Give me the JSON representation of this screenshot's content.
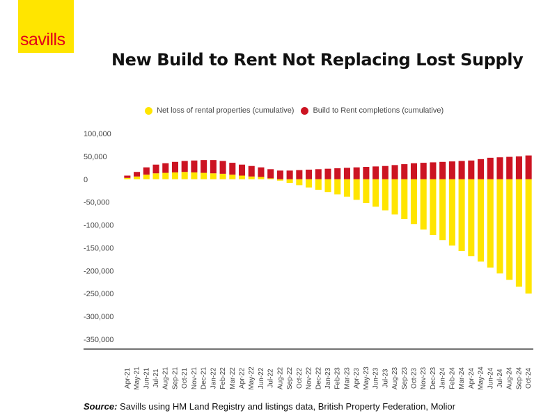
{
  "logo": {
    "text": "savills",
    "background_color": "#FFE500",
    "text_color": "#E2001A"
  },
  "source": {
    "label": "Source:",
    "text": "Savills using HM Land Registry and listings data, British Property Federation, Molior"
  },
  "colors": {
    "net_loss": "#FFE500",
    "btr": "#CC1422",
    "axis": "#444444",
    "grid": "#e6e6e6"
  },
  "chart_data": {
    "type": "bar",
    "stacking": "diverging",
    "title": "New Build to Rent Not Replacing Lost Supply",
    "legend_position": "top",
    "grid": false,
    "ylim": [
      -350000,
      100000
    ],
    "y_ticks": [
      100000,
      50000,
      0,
      -50000,
      -100000,
      -150000,
      -200000,
      -250000,
      -300000,
      -350000
    ],
    "y_tick_labels": [
      "100,000",
      "50,000",
      "0",
      "-50,000",
      "-100,000",
      "-150,000",
      "-200,000",
      "-250,000",
      "-300,000",
      "-350,000"
    ],
    "categories": [
      "Apr-21",
      "May-21",
      "Jun-21",
      "Jul-21",
      "Aug-21",
      "Sep-21",
      "Oct-21",
      "Nov-21",
      "Dec-21",
      "Jan-22",
      "Feb-22",
      "Mar-22",
      "Apr-22",
      "May-22",
      "Jun-22",
      "Jul-22",
      "Aug-22",
      "Sep-22",
      "Oct-22",
      "Nov-22",
      "Dec-22",
      "Jan-23",
      "Feb-23",
      "Mar-23",
      "Apr-23",
      "May-23",
      "Jun-23",
      "Jul-23",
      "Aug-23",
      "Sep-23",
      "Oct-23",
      "Nov-23",
      "Dec-23",
      "Jan-24",
      "Feb-24",
      "Mar-24",
      "Apr-24",
      "May-24",
      "Jun-24",
      "Jul-24",
      "Aug-24",
      "Sep-24",
      "Oct-24"
    ],
    "series": [
      {
        "name": "Net loss of rental properties (cumulative)",
        "color": "#FFE500",
        "values": [
          3000,
          6000,
          10000,
          13000,
          14000,
          15000,
          16000,
          15000,
          14000,
          13000,
          12000,
          10000,
          8000,
          6000,
          5000,
          2000,
          -3000,
          -8000,
          -13000,
          -18000,
          -23000,
          -28000,
          -33000,
          -38000,
          -45000,
          -52000,
          -60000,
          -68000,
          -77000,
          -87000,
          -98000,
          -110000,
          -122000,
          -133000,
          -145000,
          -157000,
          -168000,
          -180000,
          -193000,
          -206000,
          -220000,
          -235000,
          -250000
        ]
      },
      {
        "name": "Build to Rent completions (cumulative)",
        "color": "#CC1422",
        "values": [
          5000,
          10000,
          16000,
          19000,
          21000,
          23000,
          24000,
          26000,
          28000,
          29000,
          28000,
          26000,
          24000,
          23000,
          21000,
          20000,
          19000,
          19000,
          20000,
          21000,
          22000,
          23000,
          24000,
          25000,
          26000,
          27000,
          28000,
          29000,
          31000,
          33000,
          35000,
          36000,
          37000,
          38000,
          39000,
          40000,
          41000,
          44000,
          47000,
          48000,
          49000,
          50000,
          52000
        ]
      }
    ]
  }
}
